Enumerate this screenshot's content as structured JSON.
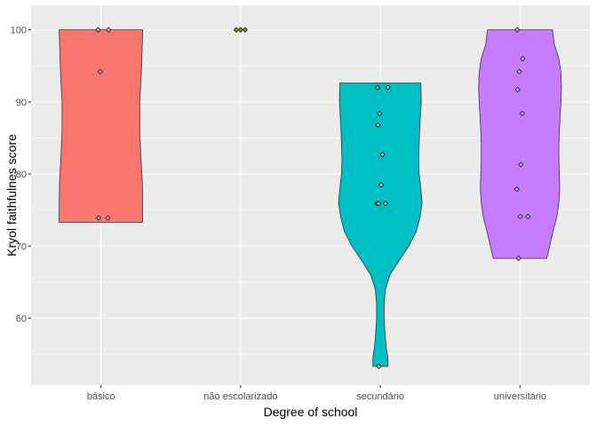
{
  "chart_data": {
    "type": "violin",
    "xlabel": "Degree of school",
    "ylabel": "Kryol faithfulnes score",
    "ylim": [
      50.7,
      103.4
    ],
    "yticks": [
      60,
      70,
      80,
      90,
      100
    ],
    "categories": [
      "básico",
      "não escolarizado",
      "secundário",
      "universitário"
    ],
    "grid": true,
    "legend": "none",
    "colors": {
      "panel": "#ebebeb",
      "grid_major": "#ffffff",
      "outline": "#333333",
      "point_fill": "#bdbdbd",
      "groups": [
        "#F8766D",
        "#7CAE00",
        "#00BFC4",
        "#C77CFF"
      ]
    },
    "groups": [
      {
        "category": "básico",
        "points": [
          100,
          100,
          94.2,
          73.9,
          73.9
        ],
        "shape": [
          [
            73.3,
            1.0
          ],
          [
            76,
            1.0
          ],
          [
            79,
            0.99
          ],
          [
            82,
            0.96
          ],
          [
            86,
            0.93
          ],
          [
            90,
            0.93
          ],
          [
            93,
            0.96
          ],
          [
            96,
            0.98
          ],
          [
            98,
            0.99
          ],
          [
            100,
            1.0
          ]
        ]
      },
      {
        "category": "não escolarizado",
        "points": [
          100,
          100,
          100
        ],
        "shape": []
      },
      {
        "category": "secundário",
        "points": [
          92,
          92,
          88.4,
          86.8,
          82.7,
          78.5,
          75.9,
          75.9,
          75.9,
          53.3
        ],
        "shape": [
          [
            53.3,
            0.18
          ],
          [
            54.5,
            0.18
          ],
          [
            56,
            0.14
          ],
          [
            58,
            0.11
          ],
          [
            60,
            0.09
          ],
          [
            62,
            0.09
          ],
          [
            64,
            0.12
          ],
          [
            66,
            0.23
          ],
          [
            68,
            0.45
          ],
          [
            70,
            0.68
          ],
          [
            72,
            0.86
          ],
          [
            74,
            0.95
          ],
          [
            76,
            1.0
          ],
          [
            78,
            0.97
          ],
          [
            80,
            0.93
          ],
          [
            82,
            0.92
          ],
          [
            84,
            0.93
          ],
          [
            86,
            0.94
          ],
          [
            88,
            0.96
          ],
          [
            90,
            0.98
          ],
          [
            92.6,
            0.97
          ]
        ]
      },
      {
        "category": "universitário",
        "points": [
          100,
          96,
          94.2,
          91.7,
          88.4,
          81.3,
          77.9,
          74.1,
          74.1,
          68.3
        ],
        "shape": [
          [
            68.3,
            0.64
          ],
          [
            70,
            0.71
          ],
          [
            72,
            0.79
          ],
          [
            74,
            0.88
          ],
          [
            76,
            0.93
          ],
          [
            78,
            0.95
          ],
          [
            80,
            0.94
          ],
          [
            82,
            0.93
          ],
          [
            84,
            0.93
          ],
          [
            86,
            0.94
          ],
          [
            88,
            0.96
          ],
          [
            90,
            0.98
          ],
          [
            92,
            0.99
          ],
          [
            94,
            0.98
          ],
          [
            96,
            0.93
          ],
          [
            98,
            0.82
          ],
          [
            100,
            0.78
          ]
        ]
      }
    ]
  }
}
